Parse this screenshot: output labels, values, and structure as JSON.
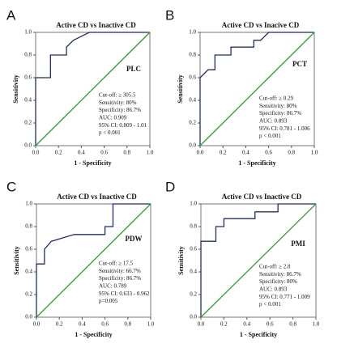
{
  "chart_data": [
    {
      "type": "line",
      "panel_label": "A",
      "title": "Active CD vs Inactive CD",
      "xlabel": "1 - Specificity",
      "ylabel": "Sensitivity",
      "label": "PLC",
      "annotation": [
        "Cut-off: ≥ 305.5",
        "Sensitivity: 80%",
        "Specificity: 86.7%",
        "AUC: 0.909",
        "95% CI: 0.809 - 1.01",
        "p < 0.001"
      ],
      "xlim": [
        0,
        1
      ],
      "ylim": [
        0,
        1
      ],
      "xticks": [
        {
          "value": 0,
          "label": "0.0"
        },
        0.2,
        0.4,
        0.6,
        0.8,
        {
          "value": 1,
          "label": "1.0"
        }
      ],
      "yticks": [
        {
          "value": 0,
          "label": "0.0"
        },
        0.2,
        0.4,
        0.6,
        0.8,
        {
          "value": 1,
          "label": "1.0"
        }
      ],
      "series": [
        {
          "color": "#1f2f6b",
          "x": [
            0,
            0,
            0.13,
            0.13,
            0.27,
            0.27,
            0.33,
            0.47,
            1
          ],
          "values": [
            0,
            0.6,
            0.6,
            0.8,
            0.8,
            0.87,
            0.93,
            1,
            1
          ]
        },
        {
          "color": "#2ca02c",
          "x": [
            0,
            1
          ],
          "values": [
            0,
            1
          ]
        }
      ]
    },
    {
      "type": "line",
      "panel_label": "B",
      "title": "Active CD vs Inacive CD",
      "xlabel": "1 - Specificity",
      "ylabel": "Sensitivity",
      "label": "PCT",
      "annotation": [
        "Cut-off: ≥ 0.29",
        "Sensitivity: 80%",
        "Specificity: 86.7%",
        "AUC: 0.893",
        "95% CI: 0.781 - 1.006",
        "p < 0.001"
      ],
      "xlim": [
        0,
        1
      ],
      "ylim": [
        0,
        1
      ],
      "xticks": [
        {
          "value": 0,
          "label": "0.0"
        },
        0.2,
        0.4,
        0.6,
        0.8,
        {
          "value": 1,
          "label": "1.0"
        }
      ],
      "yticks": [
        {
          "value": 0,
          "label": "0.0"
        },
        0.2,
        0.4,
        0.6,
        0.8,
        {
          "value": 1,
          "label": "1.0"
        }
      ],
      "series": [
        {
          "color": "#1f2f6b",
          "x": [
            0,
            0,
            0.07,
            0.13,
            0.13,
            0.27,
            0.27,
            0.47,
            0.47,
            0.53,
            0.6,
            1
          ],
          "values": [
            0,
            0.6,
            0.67,
            0.67,
            0.8,
            0.8,
            0.87,
            0.87,
            0.93,
            0.93,
            1,
            1
          ]
        },
        {
          "color": "#2ca02c",
          "x": [
            0,
            1
          ],
          "values": [
            0,
            1
          ]
        }
      ]
    },
    {
      "type": "line",
      "panel_label": "C",
      "title": "Active CD vs Inactive CD",
      "xlabel": "1 - Specificity",
      "ylabel": "Sensitivity",
      "label": "PDW",
      "annotation": [
        "Cut-off: ≥ 17.5",
        "Sensitivity: 66.7%",
        "Specificity: 86.7%",
        "AUC: 0.789",
        "95% CI: 0.633 - 0.962",
        "p=0.005"
      ],
      "xlim": [
        0,
        1
      ],
      "ylim": [
        0,
        1
      ],
      "xticks": [
        {
          "value": 0,
          "label": "0.0"
        },
        0.2,
        0.4,
        0.6,
        0.8,
        {
          "value": 1,
          "label": "1.0"
        }
      ],
      "yticks": [
        {
          "value": 0,
          "label": "0.0"
        },
        0.2,
        0.4,
        0.6,
        0.8,
        {
          "value": 1,
          "label": "1.0"
        }
      ],
      "series": [
        {
          "color": "#1f2f6b",
          "x": [
            0,
            0,
            0.07,
            0.07,
            0.13,
            0.33,
            0.6,
            0.6,
            0.67,
            0.67,
            1
          ],
          "values": [
            0,
            0.47,
            0.47,
            0.6,
            0.67,
            0.73,
            0.73,
            0.8,
            0.8,
            1,
            1
          ]
        },
        {
          "color": "#2ca02c",
          "x": [
            0,
            1
          ],
          "values": [
            0,
            1
          ]
        }
      ]
    },
    {
      "type": "line",
      "panel_label": "D",
      "title": "Active CD vs Inactive CD",
      "xlabel": "1 - Specificity",
      "ylabel": "Sensitivity",
      "label": "PMI",
      "annotation": [
        "Cut-off: ≥ 2.8",
        "Sensitivity: 86.7%",
        "Specificity: 80%",
        "AUC: 0.893",
        "95% CI: 0.771 - 1.009",
        "p < 0.001"
      ],
      "xlim": [
        0,
        1
      ],
      "ylim": [
        0,
        1
      ],
      "xticks": [
        {
          "value": 0,
          "label": "0.0"
        },
        0.2,
        0.4,
        0.6,
        0.8,
        {
          "value": 1,
          "label": "1.0"
        }
      ],
      "yticks": [
        {
          "value": 0,
          "label": "0.0"
        },
        0.2,
        0.4,
        0.6,
        0.8,
        {
          "value": 1,
          "label": "1.0"
        }
      ],
      "series": [
        {
          "color": "#1f2f6b",
          "x": [
            0,
            0,
            0.13,
            0.13,
            0.2,
            0.2,
            0.47,
            0.47,
            0.67,
            0.67,
            1
          ],
          "values": [
            0,
            0.67,
            0.67,
            0.8,
            0.8,
            0.87,
            0.87,
            0.93,
            0.93,
            1,
            1
          ]
        },
        {
          "color": "#2ca02c",
          "x": [
            0,
            1
          ],
          "values": [
            0,
            1
          ]
        }
      ]
    }
  ]
}
